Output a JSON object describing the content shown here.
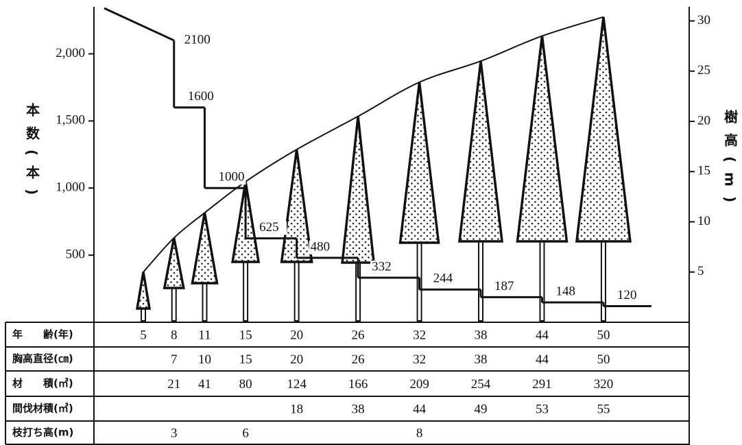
{
  "chart_data": {
    "type": "step",
    "ylabel": "本数(本)",
    "y2label": "樹高(m)",
    "ylim": [
      0,
      2350
    ],
    "yticks": [
      500,
      {
        "value": 1000,
        "label": "1,000"
      },
      {
        "value": 1500,
        "label": "1,500"
      },
      {
        "value": 2000,
        "label": "2,000"
      }
    ],
    "y2lim": [
      0,
      31.4
    ],
    "y2ticks": [
      5,
      10,
      15,
      20,
      25,
      30
    ],
    "series": [
      {
        "values": [
          2100,
          1600,
          1000,
          625,
          480,
          332,
          244,
          187,
          148,
          120
        ]
      },
      {
        "axis": "y2",
        "values": [
          5,
          8.4,
          10.9,
          14,
          17.2,
          20.5,
          23.9,
          26,
          28.5,
          30.4
        ]
      }
    ]
  },
  "table": {
    "row_labels": [
      "年　　齢(年)",
      "胸高直径(㎝)",
      "材　　積(㎥)",
      "間伐材積(㎥)",
      "枝打ち高(m)"
    ],
    "rows": [
      [
        5,
        8,
        11,
        15,
        20,
        26,
        32,
        38,
        44,
        50
      ],
      [
        null,
        7,
        10,
        15,
        20,
        26,
        32,
        38,
        44,
        50
      ],
      [
        null,
        21,
        41,
        80,
        124,
        166,
        209,
        254,
        291,
        320
      ],
      [
        null,
        null,
        null,
        null,
        18,
        38,
        44,
        49,
        53,
        55
      ],
      [
        null,
        3,
        null,
        6,
        null,
        null,
        8,
        null,
        null,
        null
      ]
    ]
  }
}
